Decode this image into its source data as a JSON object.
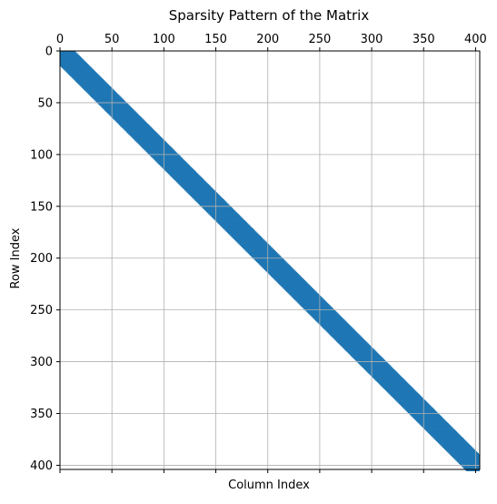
{
  "chart_data": {
    "type": "heatmap",
    "title": "Sparsity Pattern of the Matrix",
    "xlabel": "Column Index",
    "ylabel": "Row Index",
    "xlim": [
      0,
      404
    ],
    "ylim": [
      404,
      0
    ],
    "y_inverted": true,
    "x_ticks": [
      0,
      50,
      100,
      150,
      200,
      250,
      300,
      350,
      400
    ],
    "x_tick_labels": [
      "0",
      "50",
      "100",
      "150",
      "200",
      "250",
      "300",
      "350",
      "400"
    ],
    "x_tick_label_position": "top",
    "y_ticks": [
      0,
      50,
      100,
      150,
      200,
      250,
      300,
      350,
      400
    ],
    "y_tick_labels": [
      "0",
      "50",
      "100",
      "150",
      "200",
      "250",
      "300",
      "350",
      "400"
    ],
    "grid": true,
    "pattern": "banded",
    "rows": 404,
    "columns": 404,
    "band_half_width": 10,
    "marker_color": "#1f77b4"
  }
}
